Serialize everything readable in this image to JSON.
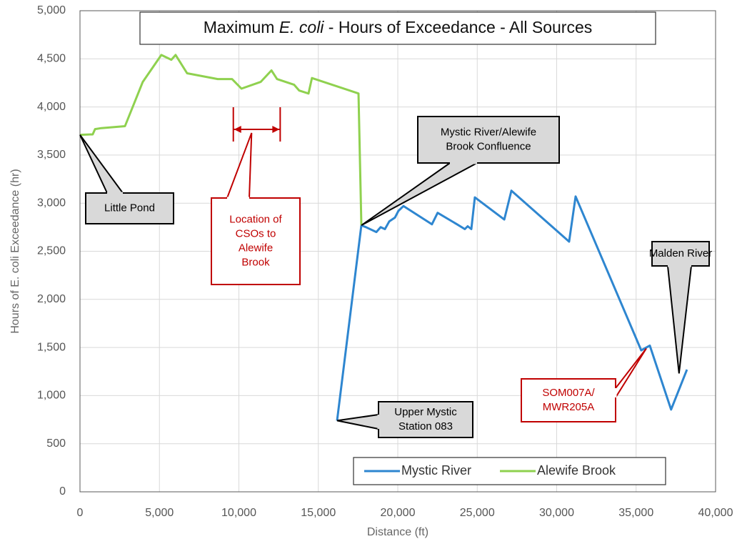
{
  "chart_data": {
    "type": "line",
    "title": [
      "Maximum ",
      "E. coli",
      " - Hours of Exceedance - All Sources"
    ],
    "x_label": "Distance (ft)",
    "y_label": "Hours of E. coli Exceedance (hr)",
    "xlim": [
      0,
      40000
    ],
    "ylim": [
      0,
      5000
    ],
    "xticks": [
      0,
      {
        "value": 5000,
        "label": "5,000"
      },
      {
        "value": 10000,
        "label": "10,000"
      },
      {
        "value": 15000,
        "label": "15,000"
      },
      {
        "value": 20000,
        "label": "20,000"
      },
      {
        "value": 25000,
        "label": "25,000"
      },
      {
        "value": 30000,
        "label": "30,000"
      },
      {
        "value": 35000,
        "label": "35,000"
      },
      {
        "value": 40000,
        "label": "40,000"
      }
    ],
    "yticks": [
      0,
      500,
      {
        "value": 1000,
        "label": "1,000"
      },
      {
        "value": 1500,
        "label": "1,500"
      },
      {
        "value": 2000,
        "label": "2,000"
      },
      {
        "value": 2500,
        "label": "2,500"
      },
      {
        "value": 3000,
        "label": "3,000"
      },
      {
        "value": 3500,
        "label": "3,500"
      },
      {
        "value": 4000,
        "label": "4,000"
      },
      {
        "value": 4500,
        "label": "4,500"
      },
      {
        "value": 5000,
        "label": "5,000"
      }
    ],
    "grid": true,
    "legend": "bottom",
    "series": [
      {
        "name": "Mystic River",
        "color": "#2e86d0",
        "x": [
          16180,
          17710,
          18000,
          18650,
          18920,
          19190,
          19460,
          19820,
          20040,
          20360,
          22150,
          22510,
          23730,
          24220,
          24400,
          24630,
          24850,
          26700,
          27150,
          30780,
          31190,
          35320,
          35860,
          37200,
          38200
        ],
        "values": [
          740,
          2770,
          2750,
          2700,
          2750,
          2730,
          2810,
          2850,
          2920,
          2970,
          2780,
          2900,
          2780,
          2730,
          2760,
          2730,
          3060,
          2830,
          3130,
          2600,
          3070,
          1470,
          1520,
          855,
          1270
        ]
      },
      {
        "name": "Alewife Brook",
        "color": "#8fd14f",
        "x": [
          0,
          800,
          950,
          1350,
          2830,
          3950,
          5120,
          5750,
          6020,
          6740,
          8670,
          9570,
          10160,
          11370,
          12050,
          12400,
          13480,
          13800,
          14380,
          14600,
          17350,
          17530,
          17710
        ],
        "values": [
          3710,
          3715,
          3770,
          3780,
          3800,
          4260,
          4540,
          4490,
          4540,
          4350,
          4290,
          4290,
          4190,
          4260,
          4380,
          4290,
          4230,
          4170,
          4140,
          4300,
          4150,
          4140,
          2770
        ]
      }
    ],
    "annotations": [
      {
        "text": [
          "Little Pond"
        ],
        "point": [
          0,
          3710
        ],
        "color": "#000000"
      },
      {
        "text": [
          "Location of",
          "CSOs to",
          "Alewife",
          "Brook"
        ],
        "point": [
          10800,
          3730
        ],
        "range": [
          9650,
          12600
        ],
        "color": "#c00000"
      },
      {
        "text": [
          "Mystic River/Alewife",
          "Brook Confluence"
        ],
        "point": [
          17710,
          2770
        ],
        "color": "#000000"
      },
      {
        "text": [
          "Upper Mystic",
          "Station 083"
        ],
        "point": [
          16180,
          740
        ],
        "color": "#000000"
      },
      {
        "text": [
          "Malden River"
        ],
        "point": [
          37700,
          1230
        ],
        "color": "#000000"
      },
      {
        "text": [
          "SOM007A/",
          "MWR205A"
        ],
        "point": [
          35640,
          1490
        ],
        "color": "#c00000"
      }
    ]
  }
}
